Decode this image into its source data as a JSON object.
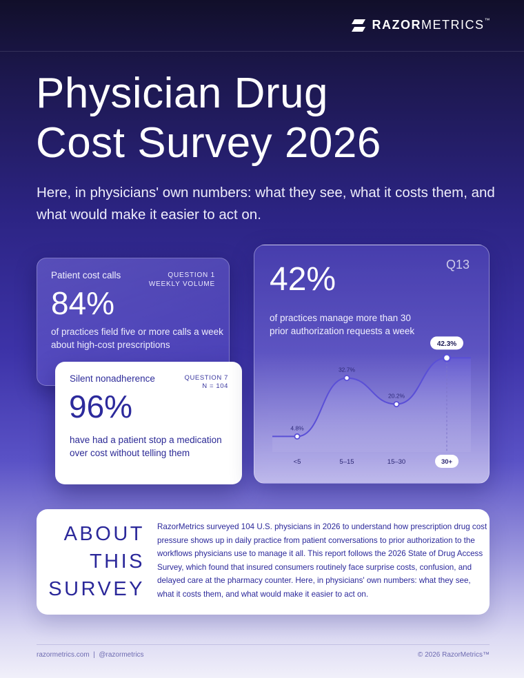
{
  "brand": {
    "bold": "RAZOR",
    "light": "METRICS",
    "tm": "™"
  },
  "title": {
    "line1": "Physician Drug",
    "line2": "Cost Survey 2026"
  },
  "subtitle": "Here, in physicians' own numbers: what they see, what it costs them, and what would make it easier to act on.",
  "card_calls": {
    "label": "Patient cost calls",
    "question": "QUESTION 1",
    "question_sub": "WEEKLY VOLUME",
    "value": "84%",
    "description": "of practices field five or more calls a week about high-cost prescriptions"
  },
  "card_nonadherence": {
    "label": "Silent nonadherence",
    "question": "QUESTION 7",
    "question_sub": "N = 104",
    "value": "96%",
    "description": "have had a patient stop a medication over cost without telling them"
  },
  "card_prior_auth": {
    "value": "42%",
    "question": "Q13",
    "description": "of practices manage more than 30 prior authorization requests a week"
  },
  "chart_data": {
    "type": "area",
    "categories": [
      "<5",
      "5–15",
      "15–30",
      "30+"
    ],
    "values": [
      4.8,
      32.7,
      20.2,
      42.3
    ],
    "value_labels": [
      "4.8%",
      "32.7%",
      "20.2%",
      "42.3%"
    ],
    "highlight_category": "30+",
    "ylim": [
      0,
      50
    ],
    "title": "",
    "xlabel": "",
    "ylabel": "",
    "grid": false,
    "legend": "none",
    "line_color": "#5a4fd6"
  },
  "about": {
    "title_lines": [
      "ABOUT",
      "THIS",
      "SURVEY"
    ],
    "body": "RazorMetrics surveyed 104 U.S. physicians in 2026 to understand how prescription drug cost pressure shows up in daily practice from patient conversations to prior authorization to the workflows physicians use to manage it all. This report follows the 2026 State of Drug Access Survey, which found that insured consumers routinely face surprise costs, confusion, and delayed care at the pharmacy counter. Here, in physicians' own numbers: what they see, what it costs them, and what would make it easier to act on."
  },
  "footer": {
    "left": "razormetrics.com  |  @razormetrics",
    "right": "© 2026 RazorMetrics™"
  },
  "colors": {
    "accent": "#2c2a9c",
    "background_top": "#110f2a",
    "background_mid": "#3d33a8",
    "background_bottom": "#f1f0fa"
  }
}
